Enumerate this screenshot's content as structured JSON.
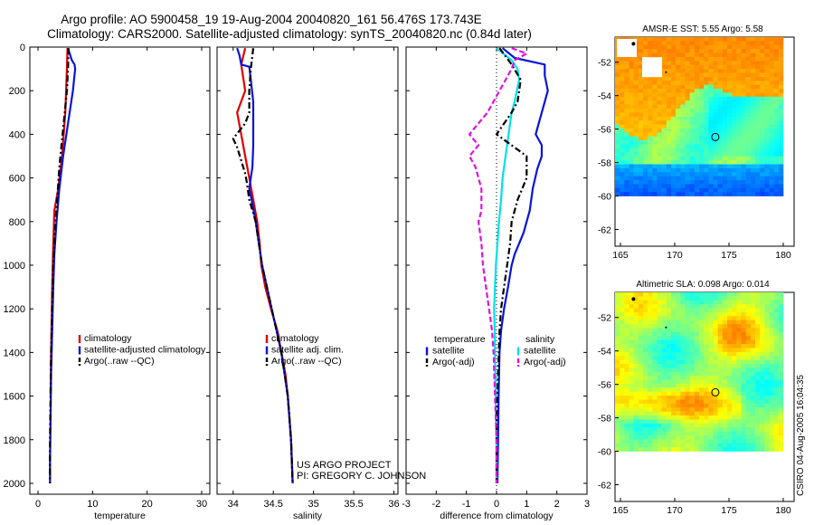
{
  "header": {
    "title_line1": "Argo profile: AO 5900458_19 19-Aug-2004 20040820_161 56.476S 173.743E",
    "title_line2": "Climatology: CARS2000. Satellite-adjusted climatology: synTS_20040820.nc (0.84d later)"
  },
  "credits": {
    "line1": "US ARGO PROJECT",
    "line2": "PI: GREGORY C. JOHNSON"
  },
  "timestamp": "CSIRO 04-Aug-2005 16:04:35",
  "colors": {
    "climatology": "#e00000",
    "satellite": "#0a14d8",
    "argo": "#000000",
    "sat_diff": "#00e0e8",
    "argo_sal_diff": "#e010e0"
  },
  "chart_data": [
    {
      "type": "line",
      "xlabel": "temperature",
      "ylabel": "",
      "xlim": [
        -1.5,
        31.5
      ],
      "ylim": [
        2050,
        0
      ],
      "xticks": [
        "0",
        "10",
        "20",
        "30"
      ],
      "yticks": [
        "0",
        "200",
        "400",
        "600",
        "800",
        "1000",
        "1200",
        "1400",
        "1600",
        "1800",
        "2000"
      ],
      "legend": [
        "climatology",
        "satellite-adjusted climatology",
        "Argo(..raw --QC)"
      ],
      "legend_placement": "center-right",
      "series": [
        {
          "name": "climatology",
          "color": "red",
          "style": "solid",
          "points": [
            [
              5.4,
              5
            ],
            [
              5.3,
              100
            ],
            [
              5.0,
              300
            ],
            [
              4.4,
              500
            ],
            [
              3.7,
              650
            ],
            [
              3.0,
              750
            ],
            [
              2.8,
              900
            ],
            [
              2.6,
              1100
            ],
            [
              2.4,
              1400
            ],
            [
              2.3,
              1600
            ]
          ]
        },
        {
          "name": "satellite-adjusted climatology",
          "color": "blue",
          "style": "solid",
          "points": [
            [
              5.5,
              5
            ],
            [
              6.2,
              60
            ],
            [
              6.7,
              80
            ],
            [
              6.8,
              100
            ],
            [
              6.4,
              200
            ],
            [
              5.8,
              300
            ],
            [
              5.2,
              400
            ],
            [
              4.6,
              500
            ],
            [
              3.9,
              650
            ],
            [
              3.4,
              800
            ],
            [
              3.0,
              950
            ],
            [
              2.8,
              1100
            ],
            [
              2.6,
              1300
            ],
            [
              2.4,
              1500
            ],
            [
              2.3,
              1700
            ],
            [
              2.2,
              1900
            ],
            [
              2.2,
              2000
            ]
          ]
        },
        {
          "name": "Argo(..raw --QC)",
          "color": "black",
          "style": "dashdot",
          "points": [
            [
              5.6,
              5
            ],
            [
              5.5,
              100
            ],
            [
              5.3,
              200
            ],
            [
              4.7,
              350
            ],
            [
              4.3,
              450
            ],
            [
              3.9,
              550
            ],
            [
              3.5,
              700
            ],
            [
              3.2,
              800
            ],
            [
              3.0,
              900
            ],
            [
              2.8,
              1000
            ],
            [
              2.6,
              1200
            ],
            [
              2.4,
              1400
            ],
            [
              2.3,
              1600
            ],
            [
              2.2,
              1800
            ],
            [
              2.2,
              2000
            ]
          ]
        }
      ]
    },
    {
      "type": "line",
      "xlabel": "salinity",
      "ylabel": "",
      "xlim": [
        33.8,
        36.05
      ],
      "ylim": [
        2050,
        0
      ],
      "xticks": [
        "34",
        "34.5",
        "35",
        "35.5",
        "36"
      ],
      "legend": [
        "climatology",
        "satellite adj. clim.",
        "Argo(..raw --QC)"
      ],
      "legend_placement": "center-right",
      "series": [
        {
          "name": "climatology",
          "color": "red",
          "style": "solid",
          "points": [
            [
              34.15,
              5
            ],
            [
              34.1,
              80
            ],
            [
              34.15,
              200
            ],
            [
              34.05,
              300
            ],
            [
              34.1,
              400
            ],
            [
              34.15,
              500
            ],
            [
              34.2,
              600
            ],
            [
              34.25,
              700
            ],
            [
              34.3,
              800
            ],
            [
              34.33,
              900
            ],
            [
              34.35,
              1000
            ],
            [
              34.4,
              1100
            ],
            [
              34.47,
              1200
            ],
            [
              34.55,
              1300
            ],
            [
              34.6,
              1400
            ],
            [
              34.65,
              1500
            ],
            [
              34.68,
              1600
            ],
            [
              34.7,
              1700
            ],
            [
              34.72,
              1800
            ],
            [
              34.73,
              1900
            ],
            [
              34.74,
              2000
            ]
          ]
        },
        {
          "name": "satellite adj. clim.",
          "color": "blue",
          "style": "solid",
          "points": [
            [
              34.05,
              5
            ],
            [
              34.08,
              40
            ],
            [
              34.1,
              80
            ],
            [
              34.2,
              90
            ],
            [
              34.22,
              150
            ],
            [
              34.25,
              250
            ],
            [
              34.25,
              350
            ],
            [
              34.25,
              450
            ],
            [
              34.24,
              550
            ],
            [
              34.22,
              600
            ],
            [
              34.2,
              650
            ],
            [
              34.23,
              700
            ],
            [
              34.28,
              800
            ],
            [
              34.32,
              900
            ],
            [
              34.36,
              1000
            ],
            [
              34.42,
              1100
            ],
            [
              34.48,
              1200
            ],
            [
              34.54,
              1300
            ],
            [
              34.6,
              1400
            ],
            [
              34.64,
              1500
            ],
            [
              34.68,
              1600
            ],
            [
              34.7,
              1700
            ],
            [
              34.72,
              1800
            ],
            [
              34.73,
              1900
            ],
            [
              34.74,
              2000
            ]
          ]
        },
        {
          "name": "Argo(..raw --QC)",
          "color": "black",
          "style": "dashdot",
          "points": [
            [
              34.25,
              5
            ],
            [
              34.22,
              100
            ],
            [
              34.2,
              200
            ],
            [
              34.2,
              300
            ],
            [
              34.15,
              350
            ],
            [
              34.0,
              420
            ],
            [
              34.05,
              460
            ],
            [
              34.1,
              520
            ],
            [
              34.15,
              580
            ],
            [
              34.17,
              620
            ],
            [
              34.2,
              700
            ],
            [
              34.28,
              800
            ],
            [
              34.32,
              900
            ],
            [
              34.36,
              1000
            ],
            [
              34.42,
              1100
            ],
            [
              34.48,
              1200
            ],
            [
              34.54,
              1300
            ],
            [
              34.6,
              1400
            ],
            [
              34.64,
              1500
            ],
            [
              34.68,
              1600
            ],
            [
              34.7,
              1700
            ],
            [
              34.72,
              1800
            ],
            [
              34.73,
              1900
            ],
            [
              34.74,
              2000
            ]
          ]
        }
      ]
    },
    {
      "type": "line",
      "xlabel": "difference from climatology",
      "ylabel": "",
      "xlim": [
        -3,
        3
      ],
      "ylim": [
        2050,
        0
      ],
      "xticks": [
        "-3",
        "-2",
        "-1",
        "0",
        "1",
        "2",
        "3"
      ],
      "legend": [
        "temperature",
        "satellite",
        "Argo(-adj)",
        "salinity",
        "satellite",
        "Argo(-adj)"
      ],
      "legend_placement": "center",
      "series": [
        {
          "name": "satellite",
          "color": "blue",
          "style": "solid",
          "points": [
            [
              0.2,
              5
            ],
            [
              0.6,
              50
            ],
            [
              1.6,
              80
            ],
            [
              1.6,
              130
            ],
            [
              1.7,
              200
            ],
            [
              1.5,
              300
            ],
            [
              1.3,
              400
            ],
            [
              1.5,
              450
            ],
            [
              1.5,
              500
            ],
            [
              1.35,
              560
            ],
            [
              1.2,
              650
            ],
            [
              1.1,
              750
            ],
            [
              1.0,
              800
            ],
            [
              0.9,
              850
            ],
            [
              0.75,
              900
            ],
            [
              0.6,
              950
            ],
            [
              0.5,
              1000
            ],
            [
              0.38,
              1100
            ],
            [
              0.25,
              1200
            ],
            [
              0.15,
              1300
            ],
            [
              0.1,
              1400
            ],
            [
              0.07,
              1600
            ],
            [
              0.05,
              1800
            ],
            [
              0.03,
              2000
            ]
          ]
        },
        {
          "name": "satellite",
          "color": "cyan",
          "style": "solid",
          "points": [
            [
              0.0,
              5
            ],
            [
              0.5,
              60
            ],
            [
              0.7,
              100
            ],
            [
              0.75,
              150
            ],
            [
              0.6,
              250
            ],
            [
              0.5,
              300
            ],
            [
              0.4,
              400
            ],
            [
              0.3,
              500
            ],
            [
              0.2,
              600
            ],
            [
              0.15,
              700
            ],
            [
              0.08,
              800
            ],
            [
              0.03,
              900
            ],
            [
              -0.02,
              1000
            ],
            [
              -0.05,
              1100
            ],
            [
              -0.08,
              1200
            ],
            [
              -0.06,
              1300
            ],
            [
              -0.05,
              1400
            ],
            [
              -0.03,
              1600
            ],
            [
              0.0,
              1800
            ],
            [
              0.0,
              2000
            ]
          ]
        },
        {
          "name": "Argo(-adj)",
          "color": "black",
          "style": "dashdot",
          "points": [
            [
              0.1,
              5
            ],
            [
              0.5,
              80
            ],
            [
              0.8,
              150
            ],
            [
              0.7,
              250
            ],
            [
              0.5,
              300
            ],
            [
              0.0,
              400
            ],
            [
              1.0,
              500
            ],
            [
              1.0,
              600
            ],
            [
              0.7,
              700
            ],
            [
              0.5,
              800
            ],
            [
              0.45,
              900
            ],
            [
              0.35,
              1000
            ],
            [
              0.25,
              1100
            ],
            [
              0.15,
              1200
            ],
            [
              0.1,
              1300
            ],
            [
              0.05,
              1500
            ],
            [
              0.0,
              1700
            ],
            [
              0.0,
              2000
            ]
          ]
        },
        {
          "name": "Argo(-adj)",
          "color": "magenta",
          "style": "dashed",
          "points": [
            [
              0.5,
              5
            ],
            [
              1.0,
              30
            ],
            [
              0.6,
              60
            ],
            [
              0.5,
              100
            ],
            [
              0.3,
              150
            ],
            [
              0.1,
              200
            ],
            [
              -0.3,
              300
            ],
            [
              -0.6,
              350
            ],
            [
              -0.9,
              400
            ],
            [
              -0.6,
              450
            ],
            [
              -0.9,
              500
            ],
            [
              -0.7,
              550
            ],
            [
              -0.5,
              650
            ],
            [
              -0.5,
              750
            ],
            [
              -0.6,
              800
            ],
            [
              -0.5,
              900
            ],
            [
              -0.45,
              1000
            ],
            [
              -0.35,
              1100
            ],
            [
              -0.25,
              1200
            ],
            [
              -0.15,
              1300
            ],
            [
              -0.1,
              1400
            ],
            [
              -0.05,
              1600
            ],
            [
              0.0,
              1800
            ],
            [
              0.0,
              2000
            ]
          ]
        }
      ]
    },
    {
      "type": "heatmap",
      "title": "AMSR-E SST: 5.55 Argo: 5.58",
      "xlim": [
        164.5,
        181
      ],
      "ylim": [
        -63,
        -50.5
      ],
      "xticks": [
        "165",
        "170",
        "175",
        "180"
      ],
      "yticks": [
        "-52",
        "-54",
        "-56",
        "-58",
        "-60",
        "-62"
      ],
      "field_extent": {
        "lon": [
          164.5,
          180
        ],
        "lat": [
          -60,
          -50.5
        ]
      },
      "float_position": [
        173.743,
        -56.476
      ],
      "colormap": "jet",
      "value_range": [
        0,
        12
      ]
    },
    {
      "type": "heatmap",
      "title": "Altimetric SLA: 0.098 Argo: 0.014",
      "xlim": [
        164.5,
        181
      ],
      "ylim": [
        -63,
        -50.5
      ],
      "xticks": [
        "165",
        "170",
        "175",
        "180"
      ],
      "yticks": [
        "-52",
        "-54",
        "-56",
        "-58",
        "-60",
        "-62"
      ],
      "field_extent": {
        "lon": [
          164.5,
          180
        ],
        "lat": [
          -60,
          -50.5
        ]
      },
      "float_position": [
        173.743,
        -56.476
      ],
      "colormap": "jet",
      "value_range": [
        -0.3,
        0.3
      ]
    }
  ]
}
